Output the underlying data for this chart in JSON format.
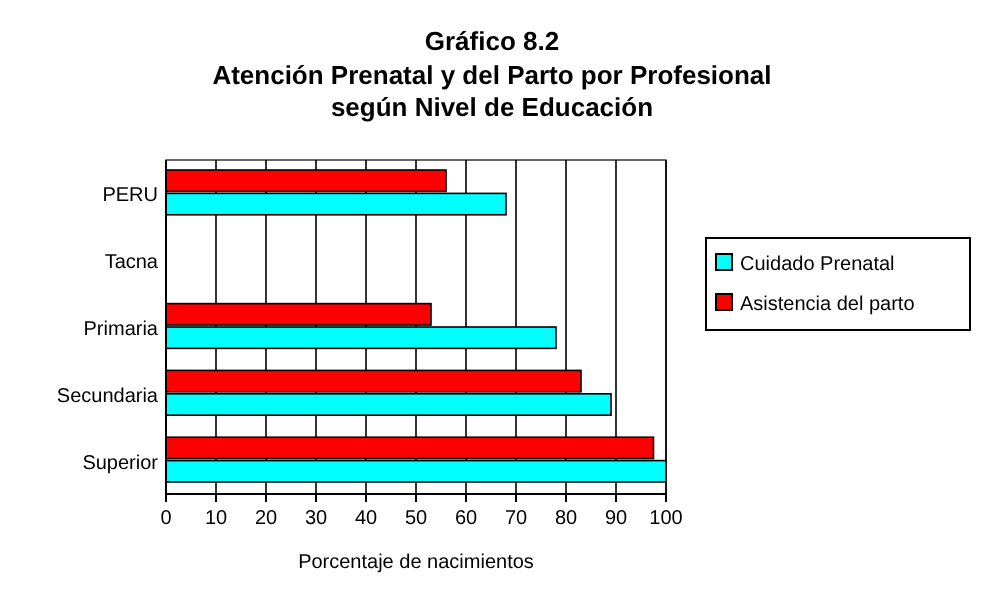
{
  "chart_data": {
    "type": "bar",
    "orientation": "horizontal",
    "title": "Gráfico 8.2",
    "subtitle": "Atención Prenatal y del Parto por Profesional según Nivel de Educación",
    "xlabel": "Porcentaje de nacimientos",
    "categories": [
      "PERU",
      "Tacna",
      "Primaria",
      "Secundaria",
      "Superior"
    ],
    "series": [
      {
        "name": "Cuidado Prenatal",
        "color": "#00ffff",
        "values": [
          68,
          0,
          78,
          89,
          100
        ]
      },
      {
        "name": "Asistencia del parto",
        "color": "#ff0000",
        "values": [
          56,
          0,
          53,
          83,
          97.5
        ]
      }
    ],
    "xlim": [
      0,
      100
    ],
    "xticks": [
      0,
      10,
      20,
      30,
      40,
      50,
      60,
      70,
      80,
      90,
      100
    ],
    "grid": "x",
    "legend": "right"
  }
}
